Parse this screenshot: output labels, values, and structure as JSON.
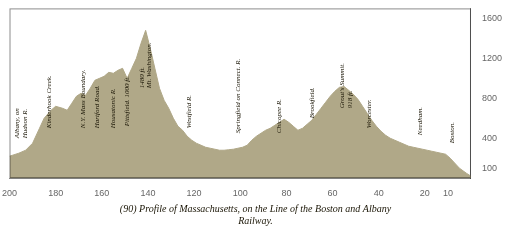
{
  "chart_data": {
    "type": "area",
    "title": "(90) Profile of Massachusetts, on the Line of the Boston and Albany\nRailway.",
    "color": "#b0a888",
    "x": [
      200,
      196,
      193,
      190,
      187,
      185,
      182,
      180,
      177,
      175,
      173,
      171,
      169,
      167,
      165,
      163,
      161,
      159,
      157,
      155,
      153,
      151,
      149,
      147,
      145,
      143,
      141,
      139,
      137,
      135,
      133,
      131,
      129,
      127,
      125,
      123,
      121,
      119,
      117,
      115,
      113,
      111,
      109,
      107,
      105,
      103,
      101,
      99,
      97,
      95,
      93,
      91,
      89,
      87,
      85,
      83,
      81,
      79,
      77,
      75,
      73,
      71,
      69,
      67,
      65,
      63,
      61,
      59,
      57,
      55,
      53,
      51,
      49,
      47,
      45,
      43,
      41,
      39,
      37,
      35,
      33,
      31,
      29,
      27,
      25,
      23,
      21,
      19,
      17,
      15,
      13,
      11,
      9,
      5,
      2,
      0
    ],
    "values": [
      220,
      250,
      280,
      350,
      500,
      600,
      680,
      720,
      700,
      680,
      750,
      820,
      850,
      830,
      900,
      980,
      1000,
      1020,
      1060,
      1050,
      1080,
      1100,
      1000,
      1100,
      1200,
      1350,
      1480,
      1300,
      1100,
      900,
      780,
      700,
      600,
      520,
      480,
      420,
      380,
      350,
      330,
      310,
      300,
      290,
      280,
      280,
      285,
      290,
      300,
      310,
      330,
      380,
      420,
      450,
      480,
      500,
      530,
      560,
      590,
      560,
      520,
      480,
      500,
      540,
      580,
      640,
      700,
      760,
      820,
      870,
      910,
      918,
      880,
      840,
      790,
      720,
      650,
      580,
      520,
      470,
      430,
      400,
      380,
      360,
      340,
      320,
      310,
      300,
      290,
      280,
      270,
      260,
      250,
      240,
      200,
      100,
      50,
      20
    ],
    "xlim": [
      200,
      0
    ],
    "ylim": [
      0,
      1700
    ],
    "xticks": [
      200,
      180,
      160,
      140,
      120,
      100,
      80,
      60,
      40,
      20,
      10
    ],
    "yticks": [
      100,
      400,
      800,
      1200,
      1600
    ],
    "grid": false,
    "annotations": [
      {
        "label": "Albany, on\nHudson R.",
        "x": 195,
        "y": 400
      },
      {
        "label": "Kinderhook Creek.",
        "x": 183,
        "y": 500
      },
      {
        "label": "N.Y. Mass Boundary.",
        "x": 168,
        "y": 500
      },
      {
        "label": "Hartford Road.",
        "x": 162,
        "y": 500
      },
      {
        "label": "Housatonic R.",
        "x": 155,
        "y": 500
      },
      {
        "label": "Pittsfield. 1000 ft.",
        "x": 149,
        "y": 520
      },
      {
        "label": "1480 ft.\nMt. Washington.",
        "x": 141,
        "y": 900
      },
      {
        "label": "Westfield R.",
        "x": 122,
        "y": 500
      },
      {
        "label": "Springfield on Connect. R.",
        "x": 101,
        "y": 450
      },
      {
        "label": "Chicopee R.",
        "x": 83,
        "y": 450
      },
      {
        "label": "Brookfield.",
        "x": 69,
        "y": 600
      },
      {
        "label": "Grout's Summit.\n918 ft.",
        "x": 54,
        "y": 700
      },
      {
        "label": "Worcester.",
        "x": 44,
        "y": 500
      },
      {
        "label": "Needham.",
        "x": 22,
        "y": 430
      },
      {
        "label": "Boston.",
        "x": 8,
        "y": 350
      }
    ]
  }
}
